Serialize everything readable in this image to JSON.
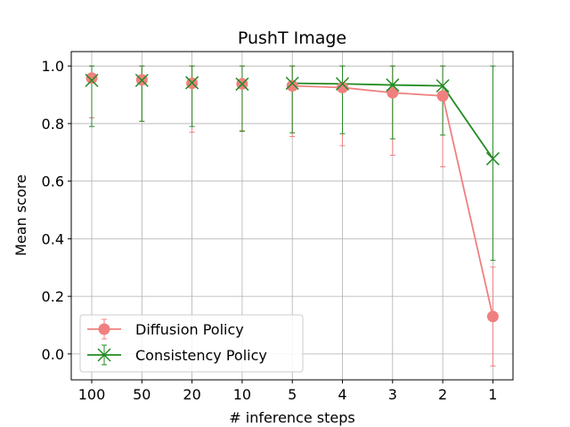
{
  "chart_data": {
    "type": "line",
    "title": "PushT Image",
    "xlabel": "# inference steps",
    "ylabel": "Mean score",
    "categories": [
      "100",
      "50",
      "20",
      "10",
      "5",
      "4",
      "3",
      "2",
      "1"
    ],
    "ylim": [
      -0.09,
      1.05
    ],
    "yticks": [
      "0.0",
      "0.2",
      "0.4",
      "0.6",
      "0.8",
      "1.0"
    ],
    "grid": true,
    "legend_position": "lower-left",
    "series": [
      {
        "name": "Diffusion Policy",
        "color": "#f08080",
        "marker": "circle",
        "values": [
          0.958,
          0.952,
          0.94,
          0.938,
          0.931,
          0.925,
          0.907,
          0.896,
          0.13
        ],
        "err_low": [
          0.82,
          0.808,
          0.77,
          0.775,
          0.755,
          0.723,
          0.69,
          0.65,
          -0.042
        ],
        "err_high": [
          1.0,
          1.0,
          1.0,
          1.0,
          1.0,
          1.0,
          1.0,
          1.0,
          0.302
        ],
        "line_from_index": 4
      },
      {
        "name": "Consistency Policy",
        "color": "#228b22",
        "marker": "x",
        "values": [
          0.95,
          0.95,
          0.942,
          0.937,
          0.94,
          0.938,
          0.934,
          0.931,
          0.678
        ],
        "err_low": [
          0.79,
          0.808,
          0.79,
          0.773,
          0.768,
          0.765,
          0.747,
          0.76,
          0.325
        ],
        "err_high": [
          1.0,
          1.0,
          1.0,
          1.0,
          1.0,
          1.0,
          1.0,
          1.0,
          1.0
        ],
        "line_from_index": 4
      }
    ]
  }
}
